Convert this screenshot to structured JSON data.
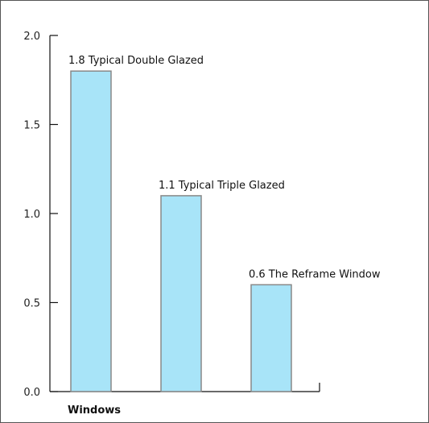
{
  "chart_data": {
    "type": "bar",
    "categories": [
      "Typical Double Glazed",
      "Typical Triple Glazed",
      "The Reframe Window"
    ],
    "values": [
      1.8,
      1.1,
      0.6
    ],
    "data_labels": [
      "1.8 Typical Double Glazed",
      "1.1 Typical Triple Glazed",
      "0.6 The Reframe Window"
    ],
    "y_ticks": [
      "0.0",
      "0.5",
      "1.0",
      "1.5",
      "2.0"
    ],
    "xlabel": "Windows",
    "ylabel": "",
    "ylim": [
      0,
      2.0
    ],
    "grid": false,
    "bar_color": "#a8e4f8",
    "bar_edge_color": "#888888"
  }
}
